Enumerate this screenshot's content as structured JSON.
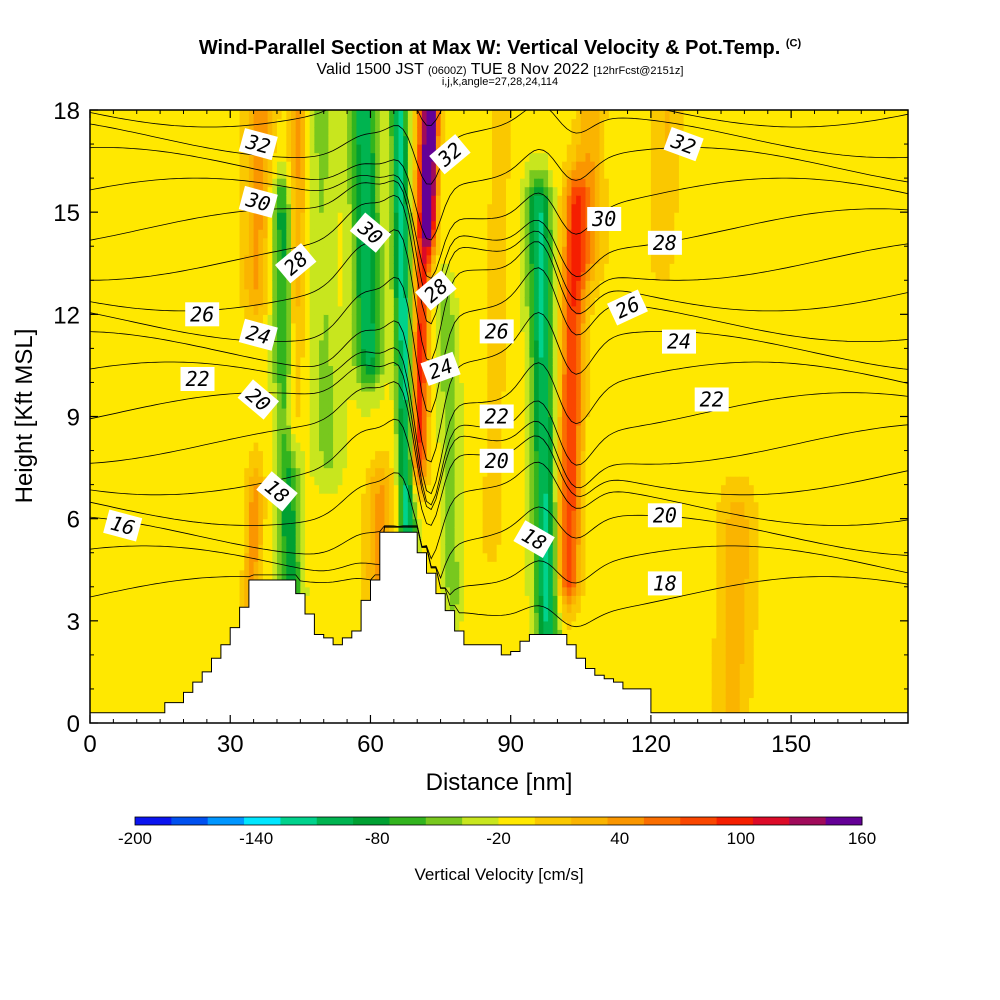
{
  "chart_data": {
    "type": "heatmap",
    "title": "Wind-Parallel Section at Max W: Vertical Velocity & Pot.Temp.",
    "title_mark": "(C)",
    "subtitle_valid": "Valid 1500 JST",
    "subtitle_utc": "(0600Z)",
    "subtitle_date": "TUE 8 Nov 2022",
    "subtitle_fcst": "[12hrFcst@2151z]",
    "subtitle_indices": "i,j,k,angle=27,28,24,114",
    "xlabel": "Distance [nm]",
    "ylabel": "Height [Kft MSL]",
    "xlim": [
      0,
      175
    ],
    "ylim": [
      0,
      18
    ],
    "x_ticks": [
      0,
      30,
      60,
      90,
      120,
      150
    ],
    "y_ticks": [
      0,
      3,
      6,
      9,
      12,
      15,
      18
    ],
    "colorbar": {
      "label": "Vertical Velocity [cm/s]",
      "min": -200,
      "max": 160,
      "step": 20,
      "tick_labels": [
        "-200",
        "-140",
        "-80",
        "-20",
        "40",
        "100",
        "160"
      ],
      "colors": [
        "#0a14f0",
        "#0050f0",
        "#0096ff",
        "#00e6ff",
        "#00d28c",
        "#00b450",
        "#00a032",
        "#32b41e",
        "#78c81e",
        "#c8e61e",
        "#ffe800",
        "#fac800",
        "#fab400",
        "#fa9600",
        "#fa6e00",
        "#fa4600",
        "#f51e00",
        "#dc0a28",
        "#a00a5a",
        "#640096"
      ]
    },
    "terrain_kft": {
      "x": [
        0,
        16,
        20,
        22,
        24,
        26,
        28,
        30,
        32,
        34,
        36,
        38,
        40,
        42,
        44,
        46,
        48,
        50,
        52,
        54,
        56,
        58,
        60,
        62,
        64,
        66,
        68,
        70,
        72,
        74,
        76,
        78,
        80,
        82,
        84,
        86,
        88,
        90,
        92,
        94,
        96,
        98,
        100,
        102,
        104,
        106,
        108,
        110,
        112,
        114,
        116,
        118,
        120,
        175
      ],
      "height": [
        0.3,
        0.6,
        0.9,
        1.2,
        1.5,
        1.9,
        2.3,
        2.8,
        3.4,
        4.2,
        4.2,
        4.2,
        4.2,
        4.2,
        3.8,
        3.2,
        2.6,
        2.5,
        2.3,
        2.5,
        2.7,
        3.6,
        4.2,
        5.6,
        5.6,
        5.6,
        5.6,
        5.0,
        4.4,
        3.8,
        3.3,
        2.7,
        2.3,
        2.3,
        2.3,
        2.3,
        2.0,
        2.1,
        2.4,
        2.6,
        2.6,
        2.6,
        2.6,
        2.3,
        1.9,
        1.6,
        1.4,
        1.3,
        1.2,
        1.0,
        1.0,
        1.0,
        0.3,
        0.3
      ]
    },
    "vertical_velocity_features": [
      {
        "x": 35,
        "z0": 3.5,
        "z1": 6.5,
        "w": 60,
        "sx": 2.0
      },
      {
        "x": 36,
        "z0": 13.0,
        "z1": 18.0,
        "w": 60,
        "sx": 3.0
      },
      {
        "x": 42,
        "z0": 4.0,
        "z1": 15.0,
        "w": -80,
        "sx": 2.5
      },
      {
        "x": 44,
        "z0": 9.0,
        "z1": 18.0,
        "w": 60,
        "sx": 2.0
      },
      {
        "x": 50,
        "z0": 8.0,
        "z1": 18.0,
        "w": -30,
        "sx": 3.0
      },
      {
        "x": 59,
        "z0": 11.0,
        "z1": 18.0,
        "w": -100,
        "sx": 3.0
      },
      {
        "x": 62,
        "z0": 4.5,
        "z1": 6.5,
        "w": 60,
        "sx": 3.0
      },
      {
        "x": 67,
        "z0": 6.0,
        "z1": 18.0,
        "w": -120,
        "sx": 1.8
      },
      {
        "x": 71,
        "z0": 8.0,
        "z1": 18.0,
        "w": 120,
        "sx": 1.8
      },
      {
        "x": 73,
        "z0": 15.0,
        "z1": 18.0,
        "w": 150,
        "sx": 1.5
      },
      {
        "x": 77,
        "z0": 4.0,
        "z1": 12.0,
        "w": -40,
        "sx": 2.0
      },
      {
        "x": 87,
        "z0": 6.0,
        "z1": 18.0,
        "w": 30,
        "sx": 2.0
      },
      {
        "x": 97,
        "z0": 3.0,
        "z1": 15.0,
        "w": -110,
        "sx": 2.5
      },
      {
        "x": 103,
        "z0": 4.5,
        "z1": 15.0,
        "w": 110,
        "sx": 2.5
      },
      {
        "x": 107,
        "z0": 14.0,
        "z1": 18.0,
        "w": 50,
        "sx": 3.0
      },
      {
        "x": 123,
        "z0": 14.0,
        "z1": 18.0,
        "w": 30,
        "sx": 3.0
      },
      {
        "x": 138,
        "z0": 0.5,
        "z1": 6.0,
        "w": 40,
        "sx": 4.0
      }
    ],
    "theta_contours": {
      "levels": [
        16,
        17,
        18,
        19,
        20,
        21,
        22,
        23,
        24,
        25,
        26,
        27,
        28,
        29,
        30,
        31,
        32,
        33,
        34
      ],
      "labels": [
        {
          "text": "32",
          "x": 36,
          "z": 17.0,
          "angle": 15
        },
        {
          "text": "30",
          "x": 36,
          "z": 15.3,
          "angle": 15
        },
        {
          "text": "28",
          "x": 44,
          "z": 13.5,
          "angle": -40
        },
        {
          "text": "30",
          "x": 60,
          "z": 14.4,
          "angle": 40
        },
        {
          "text": "32",
          "x": 77,
          "z": 16.7,
          "angle": -40
        },
        {
          "text": "28",
          "x": 74,
          "z": 12.7,
          "angle": -40
        },
        {
          "text": "26",
          "x": 24,
          "z": 12.0,
          "angle": 0
        },
        {
          "text": "24",
          "x": 36,
          "z": 11.4,
          "angle": 15
        },
        {
          "text": "22",
          "x": 23,
          "z": 10.1,
          "angle": 0
        },
        {
          "text": "20",
          "x": 36,
          "z": 9.5,
          "angle": 40
        },
        {
          "text": "18",
          "x": 40,
          "z": 6.8,
          "angle": 40
        },
        {
          "text": "16",
          "x": 7,
          "z": 5.8,
          "angle": 15
        },
        {
          "text": "24",
          "x": 75,
          "z": 10.4,
          "angle": -20
        },
        {
          "text": "26",
          "x": 87,
          "z": 11.5,
          "angle": 0
        },
        {
          "text": "22",
          "x": 87,
          "z": 9.0,
          "angle": 0
        },
        {
          "text": "20",
          "x": 87,
          "z": 7.7,
          "angle": 0
        },
        {
          "text": "18",
          "x": 95,
          "z": 5.4,
          "angle": 30
        },
        {
          "text": "30",
          "x": 110,
          "z": 14.8,
          "angle": 0
        },
        {
          "text": "32",
          "x": 127,
          "z": 17.0,
          "angle": 20
        },
        {
          "text": "28",
          "x": 123,
          "z": 14.1,
          "angle": 0
        },
        {
          "text": "26",
          "x": 115,
          "z": 12.2,
          "angle": -25
        },
        {
          "text": "24",
          "x": 126,
          "z": 11.2,
          "angle": 0
        },
        {
          "text": "22",
          "x": 133,
          "z": 9.5,
          "angle": 0
        },
        {
          "text": "20",
          "x": 123,
          "z": 6.1,
          "angle": 0
        },
        {
          "text": "18",
          "x": 123,
          "z": 4.1,
          "angle": 0
        }
      ]
    }
  }
}
